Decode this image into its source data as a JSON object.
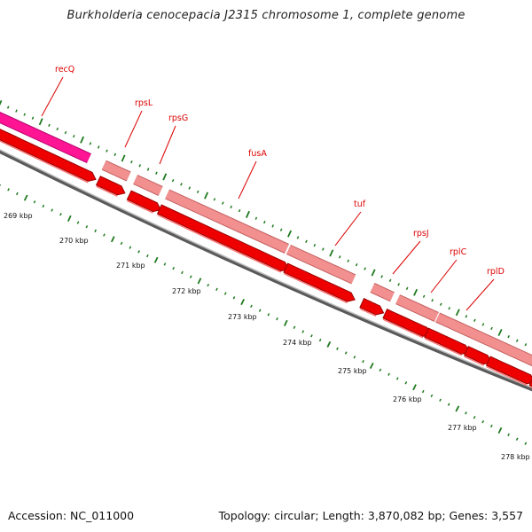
{
  "title": "Burkholderia cenocepacia J2315 chromosome 1, complete genome",
  "footer": {
    "accession": "Accession: NC_011000",
    "stats": "Topology: circular; Length: 3,870,082 bp; Genes: 3,557"
  },
  "colors": {
    "backbone": "#8c8c8c",
    "cds": "#ee0000",
    "gene_light": "#f29090",
    "gene_pink": "#ff1493",
    "tick": "#1f7a1f",
    "label": "#dd0000"
  },
  "genes": [
    {
      "name": "recQ",
      "color": "pink"
    },
    {
      "name": "rpsL",
      "color": "light"
    },
    {
      "name": "rpsG",
      "color": "light"
    },
    {
      "name": "fusA",
      "color": "light"
    },
    {
      "name": "tuf",
      "color": "light"
    },
    {
      "name": "rpsJ",
      "color": "light"
    },
    {
      "name": "rplC",
      "color": "light"
    },
    {
      "name": "rplD",
      "color": "light"
    }
  ],
  "kbp_labels": [
    "269 kbp",
    "270 kbp",
    "271 kbp",
    "272 kbp",
    "273 kbp",
    "274 kbp",
    "275 kbp",
    "276 kbp",
    "277 kbp",
    "278 kbp"
  ]
}
